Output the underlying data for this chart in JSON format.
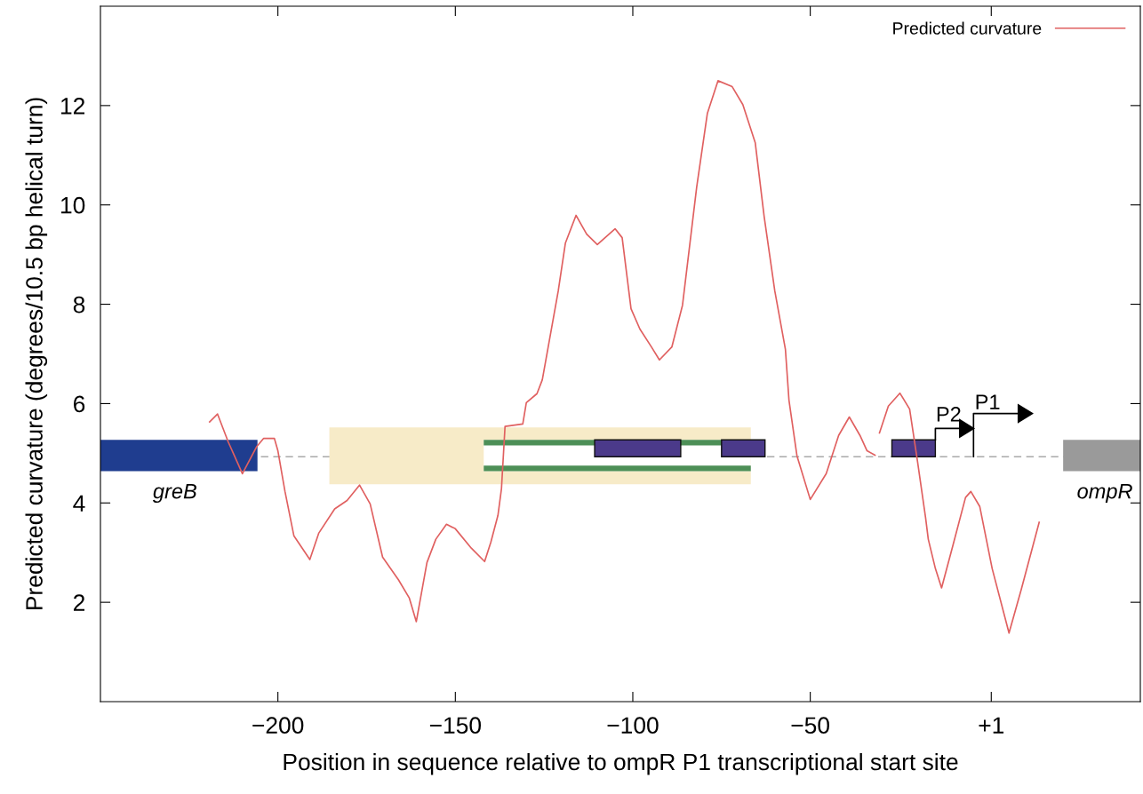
{
  "chart_data": {
    "type": "line",
    "xlabel": "Position in sequence relative to ompR P1 transcriptional start site",
    "ylabel": "Predicted curvature (degrees/10.5 bp helical turn)",
    "xlim": [
      -250,
      43
    ],
    "ylim": [
      0,
      14
    ],
    "xticks": [
      {
        "value": -200,
        "label": "−200"
      },
      {
        "value": -150,
        "label": "−150"
      },
      {
        "value": -100,
        "label": "−100"
      },
      {
        "value": -50,
        "label": "−50"
      },
      {
        "value": 1,
        "label": "+1"
      }
    ],
    "ref_lines": [
      {
        "axis": "y",
        "value": 4.93,
        "color": "#aaaaaa",
        "line_style": "dashed"
      }
    ],
    "yticks": [
      2,
      4,
      6,
      8,
      10,
      12
    ],
    "grid": false,
    "legend": "top right",
    "marker": "none",
    "line_style": "solid",
    "series": [
      {
        "name": "Predicted curvature",
        "color": "#e06060",
        "x": [
          -219.25,
          -217,
          -214,
          -210,
          -206,
          -204,
          -201,
          -200,
          -198,
          -195.5,
          -191,
          -188.5,
          -184,
          -180.5,
          -177,
          -174,
          -170.5,
          -166,
          -163,
          -161,
          -158,
          -155.5,
          -152.5,
          -150,
          -145.5,
          -141.75,
          -140,
          -138,
          -137,
          -136,
          -131,
          -130,
          -127,
          -125.5,
          -121,
          -119,
          -116,
          -113,
          -110,
          -105,
          -103,
          -100.5,
          -98,
          -94.75,
          -92.5,
          -89,
          -86,
          -82,
          -79,
          -76,
          -72,
          -69,
          -65.5,
          -63,
          -60,
          -57,
          -56,
          -53.75,
          -50,
          -45.5,
          -42,
          -39,
          -36,
          -34,
          -31.75,
          -31,
          -30.5,
          -28,
          -24.75,
          -22,
          -19.75,
          -17.5,
          -16.75,
          -14.75,
          -13,
          -9.75,
          -6.25,
          -4.75,
          -2.25,
          1.25,
          6,
          9.5,
          14.5
        ],
        "values": [
          5.63,
          5.79,
          5.23,
          4.59,
          5.13,
          5.3,
          5.3,
          5.05,
          4.23,
          3.34,
          2.86,
          3.39,
          3.88,
          4.05,
          4.36,
          3.98,
          2.91,
          2.45,
          2.09,
          1.61,
          2.8,
          3.27,
          3.57,
          3.48,
          3.09,
          2.82,
          3.21,
          3.75,
          4.29,
          5.54,
          5.59,
          6.02,
          6.2,
          6.48,
          8.27,
          9.23,
          9.79,
          9.41,
          9.2,
          9.52,
          9.34,
          7.91,
          7.5,
          7.14,
          6.88,
          7.14,
          7.98,
          10.36,
          11.84,
          12.5,
          12.38,
          12.02,
          11.25,
          9.77,
          8.27,
          7.09,
          6.07,
          4.95,
          4.07,
          4.59,
          5.36,
          5.73,
          5.36,
          5.05,
          4.96,
          null,
          5.41,
          5.95,
          6.21,
          5.89,
          4.82,
          3.7,
          3.27,
          2.68,
          2.29,
          3.16,
          4.11,
          4.23,
          3.93,
          2.68,
          1.38,
          2.27,
          3.61
        ]
      }
    ],
    "annotations": [
      "greB",
      "ompR",
      "P2",
      {
        "text": "P1",
        "x": 1,
        "y": 4.93
      }
    ]
  }
}
